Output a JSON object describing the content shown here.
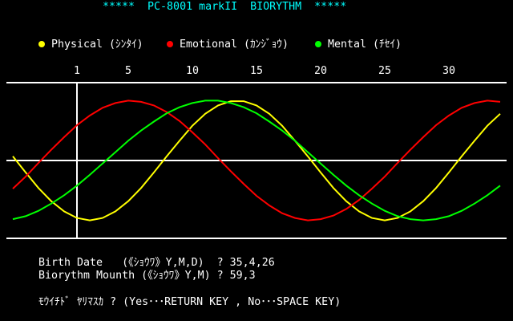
{
  "chart_data": {
    "type": "line",
    "title": "*****  PC-8001 markII  BIORYTHM  *****",
    "x": [
      -4,
      -3,
      -2,
      -1,
      0,
      1,
      2,
      3,
      4,
      5,
      6,
      7,
      8,
      9,
      10,
      11,
      12,
      13,
      14,
      15,
      16,
      17,
      18,
      19,
      20,
      21,
      22,
      23,
      24,
      25,
      26,
      27,
      28,
      29,
      30,
      31,
      32,
      33,
      34
    ],
    "xlim": [
      -4.5,
      34.5
    ],
    "xticks": [
      1,
      5,
      10,
      15,
      20,
      25,
      30
    ],
    "ylim": [
      -1.3,
      1.3
    ],
    "series": [
      {
        "name": "Physical (ｼﾝﾀｲ)",
        "color": "#ffff00",
        "values": [
          0.07,
          -0.2,
          -0.46,
          -0.68,
          -0.85,
          -0.96,
          -1.0,
          -0.96,
          -0.85,
          -0.68,
          -0.46,
          -0.2,
          0.07,
          0.33,
          0.58,
          0.78,
          0.92,
          0.99,
          0.99,
          0.92,
          0.78,
          0.58,
          0.33,
          0.07,
          -0.2,
          -0.46,
          -0.68,
          -0.85,
          -0.96,
          -1.0,
          -0.96,
          -0.85,
          -0.68,
          -0.46,
          -0.2,
          0.07,
          0.33,
          0.58,
          0.78
        ]
      },
      {
        "name": "Emotional (ｶﾝｼﾞｮｳ)",
        "color": "#ff0000",
        "values": [
          -0.47,
          -0.27,
          -0.04,
          0.18,
          0.39,
          0.59,
          0.75,
          0.88,
          0.96,
          1.0,
          0.98,
          0.92,
          0.81,
          0.66,
          0.47,
          0.27,
          0.04,
          -0.18,
          -0.39,
          -0.59,
          -0.75,
          -0.88,
          -0.96,
          -1.0,
          -0.98,
          -0.92,
          -0.81,
          -0.66,
          -0.47,
          -0.27,
          -0.04,
          0.18,
          0.39,
          0.59,
          0.75,
          0.88,
          0.96,
          1.0,
          0.98
        ]
      },
      {
        "name": "Mental (ﾁｾｲ)",
        "color": "#00ff00",
        "values": [
          -0.98,
          -0.93,
          -0.84,
          -0.72,
          -0.58,
          -0.42,
          -0.24,
          -0.05,
          0.14,
          0.33,
          0.5,
          0.65,
          0.79,
          0.89,
          0.96,
          1.0,
          1.0,
          0.96,
          0.89,
          0.79,
          0.65,
          0.5,
          0.33,
          0.14,
          -0.05,
          -0.24,
          -0.42,
          -0.58,
          -0.72,
          -0.84,
          -0.93,
          -0.98,
          -1.0,
          -0.98,
          -0.93,
          -0.84,
          -0.72,
          -0.58,
          -0.42
        ]
      }
    ]
  },
  "prompt": {
    "lines": [
      "Birth Date   (《ｼｮｳﾜ》Y,M,D)  ? 35,4,26",
      "Biorythm Mounth (《ｼｮｳﾜ》Y,M) ? 59,3",
      "ﾓｳｲﾁﾄﾞ ﾔﾘﾏｽｶ ? (Yes･･･RETURN KEY , No･･･SPACE KEY)"
    ]
  }
}
